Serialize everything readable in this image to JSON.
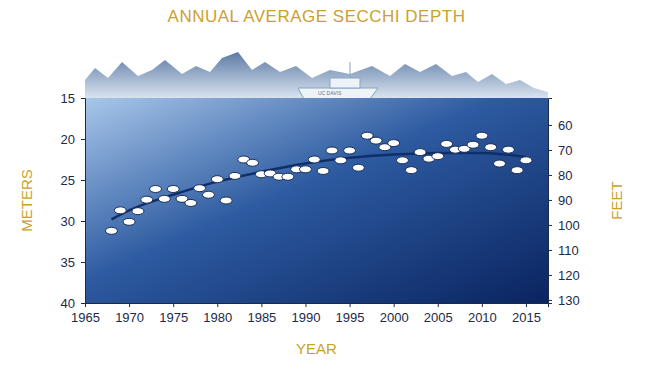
{
  "chart_data": {
    "type": "scatter",
    "title": "ANNUAL AVERAGE SECCHI DEPTH",
    "x_label": "YEAR",
    "y_label": "METERS",
    "y2_label": "FEET",
    "annotations": [
      "UC DAVIS"
    ],
    "grid": false,
    "x": [
      1968,
      1969,
      1970,
      1971,
      1972,
      1973,
      1974,
      1975,
      1976,
      1977,
      1978,
      1979,
      1980,
      1981,
      1982,
      1983,
      1984,
      1985,
      1986,
      1987,
      1988,
      1989,
      1990,
      1991,
      1992,
      1993,
      1994,
      1995,
      1996,
      1997,
      1998,
      1999,
      2000,
      2001,
      2002,
      2003,
      2004,
      2005,
      2006,
      2007,
      2008,
      2009,
      2010,
      2011,
      2012,
      2013,
      2014,
      2015
    ],
    "series": [
      {
        "type": "line",
        "color": "#0f2f6b",
        "line_style": "solid",
        "x": [
          1968,
          1970,
          1975,
          1980,
          1985,
          1990,
          1995,
          2000,
          2005,
          2010,
          2015
        ],
        "values": [
          29.8,
          28.7,
          26.8,
          25.2,
          24.0,
          23.0,
          22.3,
          21.9,
          21.7,
          21.7,
          22.2
        ]
      },
      {
        "type": "scatter",
        "color": "#ffffff",
        "marker": "ellipse",
        "values": [
          31.2,
          28.7,
          30.1,
          28.8,
          27.4,
          26.1,
          27.3,
          26.1,
          27.3,
          27.8,
          26.0,
          26.8,
          24.9,
          27.5,
          24.5,
          22.5,
          22.9,
          24.3,
          24.2,
          24.6,
          24.6,
          23.7,
          23.7,
          22.5,
          23.9,
          21.4,
          22.6,
          21.4,
          23.5,
          19.6,
          20.2,
          21.0,
          20.5,
          22.6,
          23.8,
          21.6,
          22.4,
          22.1,
          20.6,
          21.3,
          21.2,
          20.7,
          19.6,
          21.0,
          23.0,
          21.3,
          23.8,
          22.6
        ]
      }
    ],
    "xlim": [
      1965,
      2017.5
    ],
    "xticks": [
      1965,
      1970,
      1975,
      1980,
      1985,
      1990,
      1995,
      2000,
      2005,
      2010,
      2015
    ],
    "ylim": [
      15,
      40
    ],
    "yticks": [
      15,
      20,
      25,
      30,
      35,
      40
    ],
    "y2lim": [
      49.21,
      131.23
    ],
    "y2ticks": [
      60,
      70,
      80,
      90,
      100,
      110,
      120,
      130
    ]
  }
}
